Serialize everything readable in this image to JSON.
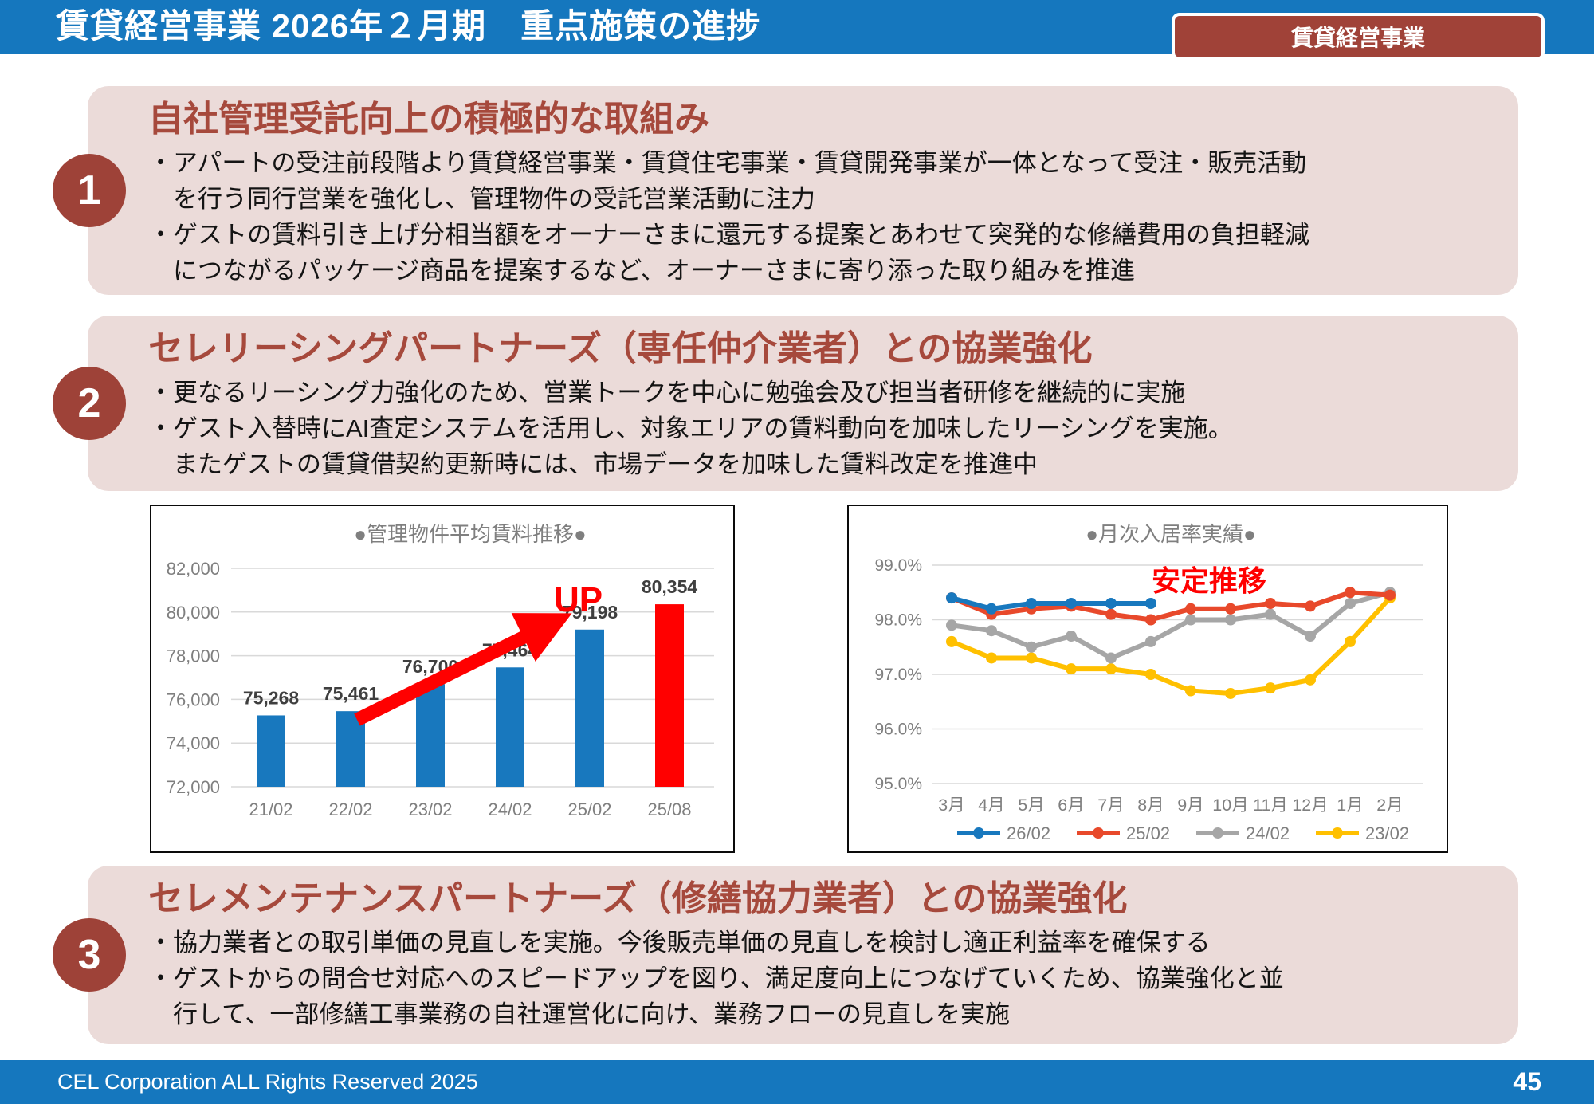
{
  "header": {
    "title": "賃貸経営事業 2026年２月期　重点施策の進捗",
    "badge": "賃貸経営事業"
  },
  "sections": [
    {
      "number": "1",
      "title": "自社管理受託向上の積極的な取組み",
      "bullets": [
        "・アパートの受注前段階より賃貸経営事業・賃貸住宅事業・賃貸開発事業が一体となって受注・販売活動\n　を行う同行営業を強化し、管理物件の受託営業活動に注力",
        "・ゲストの賃料引き上げ分相当額をオーナーさまに還元する提案とあわせて突発的な修繕費用の負担軽減\n　につながるパッケージ商品を提案するなど、オーナーさまに寄り添った取り組みを推進"
      ]
    },
    {
      "number": "2",
      "title": "セレリーシングパートナーズ（専任仲介業者）との協業強化",
      "bullets": [
        "・更なるリーシング力強化のため、営業トークを中心に勉強会及び担当者研修を継続的に実施",
        "・ゲスト入替時にAI査定システムを活用し、対象エリアの賃料動向を加味したリーシングを実施。\n　またゲストの賃貸借契約更新時には、市場データを加味した賃料改定を推進中"
      ]
    },
    {
      "number": "3",
      "title": "セレメンテナンスパートナーズ（修繕協力業者）との協業強化",
      "bullets": [
        "・協力業者との取引単価の見直しを実施。今後販売単価の見直しを検討し適正利益率を確保する",
        "・ゲストからの問合せ対応へのスピードアップを図り、満足度向上につなげていくため、協業強化と並\n　行して、一部修繕工事業務の自社運営化に向け、業務フローの見直しを実施"
      ]
    }
  ],
  "footer": {
    "copyright": "CEL Corporation ALL Rights Reserved 2025",
    "page": "45"
  },
  "colors": {
    "header_blue": "#1577BE",
    "accent_red_brown": "#9E4238",
    "box_pink": "#EBDBD9",
    "grid_gray": "#D9D9D9",
    "axis_label_gray": "#7F7F7F"
  },
  "chart_data": [
    {
      "type": "bar",
      "title": "●管理物件平均賃料推移●",
      "categories": [
        "21/02",
        "22/02",
        "23/02",
        "24/02",
        "25/02",
        "25/08"
      ],
      "values": [
        75268,
        75461,
        76700,
        77464,
        79198,
        80354
      ],
      "labels": [
        "75,268",
        "75,461",
        "76,700",
        "77,464",
        "79,198",
        "80,354"
      ],
      "bar_colors": [
        "#1878BE",
        "#1878BE",
        "#1878BE",
        "#1878BE",
        "#1878BE",
        "#FF0000"
      ],
      "xlabel": "",
      "ylabel": "",
      "ylim": [
        72000,
        82000
      ],
      "ytick_step": 2000,
      "grid": true,
      "legend": false,
      "annotation": "UP",
      "annotation_color": "#FF0000"
    },
    {
      "type": "line",
      "title": "●月次入居率実績●",
      "categories": [
        "3月",
        "4月",
        "5月",
        "6月",
        "7月",
        "8月",
        "9月",
        "10月",
        "11月",
        "12月",
        "1月",
        "2月"
      ],
      "series": [
        {
          "name": "26/02",
          "color": "#1878BE",
          "values": [
            98.4,
            98.2,
            98.3,
            98.3,
            98.3,
            98.3,
            null,
            null,
            null,
            null,
            null,
            null
          ]
        },
        {
          "name": "25/02",
          "color": "#E8492B",
          "values": [
            98.4,
            98.1,
            98.2,
            98.25,
            98.1,
            98.0,
            98.2,
            98.2,
            98.3,
            98.25,
            98.5,
            98.45
          ]
        },
        {
          "name": "24/02",
          "color": "#A6A6A6",
          "values": [
            97.9,
            97.8,
            97.5,
            97.7,
            97.3,
            97.6,
            98.0,
            98.0,
            98.1,
            97.7,
            98.3,
            98.5
          ]
        },
        {
          "name": "23/02",
          "color": "#FFC000",
          "values": [
            97.6,
            97.3,
            97.3,
            97.1,
            97.1,
            97.0,
            96.7,
            96.65,
            96.75,
            96.9,
            97.6,
            98.4
          ]
        }
      ],
      "xlabel": "",
      "ylabel": "",
      "ylim": [
        95.0,
        99.0
      ],
      "ytick_step": 1.0,
      "ytick_format": "percent",
      "grid": true,
      "legend_position": "bottom",
      "annotation": "安定推移",
      "annotation_color": "#FF0000"
    }
  ]
}
